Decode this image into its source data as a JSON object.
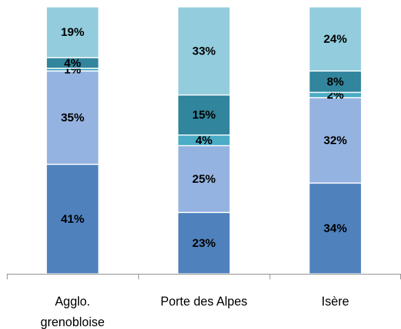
{
  "chart_data": {
    "type": "stacked_bar",
    "categories": [
      "Agglo. grenobloise",
      "Porte des Alpes",
      "Isère"
    ],
    "series": [
      {
        "color": "#4f81bd",
        "values": [
          41,
          23,
          34
        ],
        "value_labels": [
          "41%",
          "23%",
          "34%"
        ]
      },
      {
        "color": "#95b3e0",
        "values": [
          35,
          25,
          32
        ],
        "value_labels": [
          "35%",
          "25%",
          "32%"
        ]
      },
      {
        "color": "#4bacc6",
        "values": [
          1,
          4,
          2
        ],
        "value_labels": [
          "1%",
          "4%",
          "2%"
        ]
      },
      {
        "color": "#31859c",
        "values": [
          4,
          15,
          8
        ],
        "value_labels": [
          "4%",
          "15%",
          "8%"
        ]
      },
      {
        "color": "#93cddd",
        "values": [
          19,
          33,
          24
        ],
        "value_labels": [
          "19%",
          "33%",
          "24%"
        ]
      }
    ],
    "ylim": [
      0,
      100
    ]
  }
}
